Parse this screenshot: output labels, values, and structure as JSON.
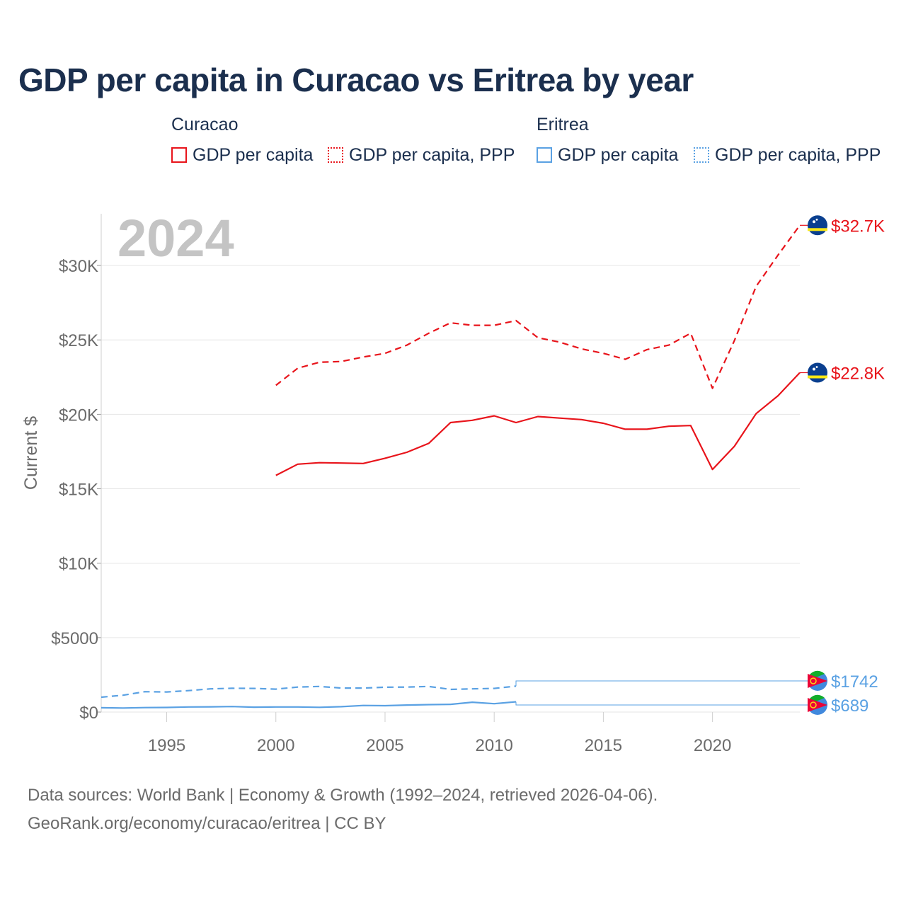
{
  "title": "GDP per capita in Curacao vs Eritrea by year",
  "legend": {
    "groups": [
      {
        "country": "Curacao",
        "color": "#e8141b",
        "items": [
          {
            "label": "GDP per capita",
            "style": "solid"
          },
          {
            "label": "GDP per capita, PPP",
            "style": "dotted"
          }
        ]
      },
      {
        "country": "Eritrea",
        "color": "#5aa1e3",
        "items": [
          {
            "label": "GDP per capita",
            "style": "solid"
          },
          {
            "label": "GDP per capita, PPP",
            "style": "dotted"
          }
        ]
      }
    ]
  },
  "year_watermark": "2024",
  "footer": {
    "sources": "Data sources: World Bank | Economy & Growth (1992–2024, retrieved 2026-04-06).",
    "credit": "GeoRank.org/economy/curacao/eritrea | CC BY"
  },
  "colors": {
    "curacao": "#e8141b",
    "eritrea": "#5aa1e3",
    "title": "#1b2f4e",
    "axis_text": "#6b6b6b",
    "grid": "#e6e6e6",
    "watermark": "#c4c4c4"
  },
  "chart_data": {
    "type": "line",
    "title": "GDP per capita in Curacao vs Eritrea by year",
    "xlabel": "",
    "ylabel": "Current $",
    "xlim": [
      1992,
      2024
    ],
    "ylim": [
      0,
      33000
    ],
    "x_ticks": [
      1995,
      2000,
      2005,
      2010,
      2015,
      2020
    ],
    "x_tick_labels": [
      "1995",
      "2000",
      "2005",
      "2010",
      "2015",
      "2020"
    ],
    "y_ticks": [
      0,
      5000,
      10000,
      15000,
      20000,
      25000,
      30000
    ],
    "y_tick_labels": [
      "$0",
      "$5000",
      "$10K",
      "$15K",
      "$20K",
      "$25K",
      "$30K"
    ],
    "grid": true,
    "series": [
      {
        "name": "Curacao GDP per capita, PPP",
        "country": "Curacao",
        "color": "#e8141b",
        "dash": "dashed",
        "end_label": "$32.7K",
        "x": [
          2000,
          2001,
          2002,
          2003,
          2004,
          2005,
          2006,
          2007,
          2008,
          2009,
          2010,
          2011,
          2012,
          2013,
          2014,
          2015,
          2016,
          2017,
          2018,
          2019,
          2020,
          2021,
          2022,
          2023,
          2024
        ],
        "values": [
          21950,
          23100,
          23500,
          23550,
          23850,
          24100,
          24650,
          25450,
          26150,
          25980,
          25980,
          26300,
          25150,
          24850,
          24400,
          24100,
          23700,
          24350,
          24650,
          25450,
          21750,
          24950,
          28600,
          30700,
          32700
        ]
      },
      {
        "name": "Curacao GDP per capita",
        "country": "Curacao",
        "color": "#e8141b",
        "dash": "solid",
        "end_label": "$22.8K",
        "x": [
          2000,
          2001,
          2002,
          2003,
          2004,
          2005,
          2006,
          2007,
          2008,
          2009,
          2010,
          2011,
          2012,
          2013,
          2014,
          2015,
          2016,
          2017,
          2018,
          2019,
          2020,
          2021,
          2022,
          2023,
          2024
        ],
        "values": [
          15900,
          16650,
          16750,
          16730,
          16700,
          17050,
          17450,
          18050,
          19450,
          19600,
          19900,
          19450,
          19850,
          19750,
          19650,
          19400,
          19000,
          19000,
          19200,
          19250,
          16300,
          17850,
          20050,
          21250,
          22800
        ]
      },
      {
        "name": "Eritrea GDP per capita, PPP",
        "country": "Eritrea",
        "color": "#5aa1e3",
        "dash": "dashed",
        "end_label": "$1742",
        "x": [
          1992,
          1993,
          1994,
          1995,
          1996,
          1997,
          1998,
          1999,
          2000,
          2001,
          2002,
          2003,
          2004,
          2005,
          2006,
          2007,
          2008,
          2009,
          2010,
          2011
        ],
        "values": [
          1000,
          1130,
          1370,
          1350,
          1440,
          1560,
          1600,
          1590,
          1540,
          1680,
          1720,
          1610,
          1610,
          1670,
          1680,
          1720,
          1520,
          1560,
          1590,
          1742
        ]
      },
      {
        "name": "Eritrea GDP per capita",
        "country": "Eritrea",
        "color": "#5aa1e3",
        "dash": "solid",
        "end_label": "$689",
        "x": [
          1992,
          1993,
          1994,
          1995,
          1996,
          1997,
          1998,
          1999,
          2000,
          2001,
          2002,
          2003,
          2004,
          2005,
          2006,
          2007,
          2008,
          2009,
          2010,
          2011
        ],
        "values": [
          290,
          270,
          300,
          310,
          340,
          350,
          370,
          330,
          340,
          340,
          320,
          360,
          440,
          430,
          470,
          500,
          520,
          660,
          560,
          689
        ]
      }
    ]
  }
}
